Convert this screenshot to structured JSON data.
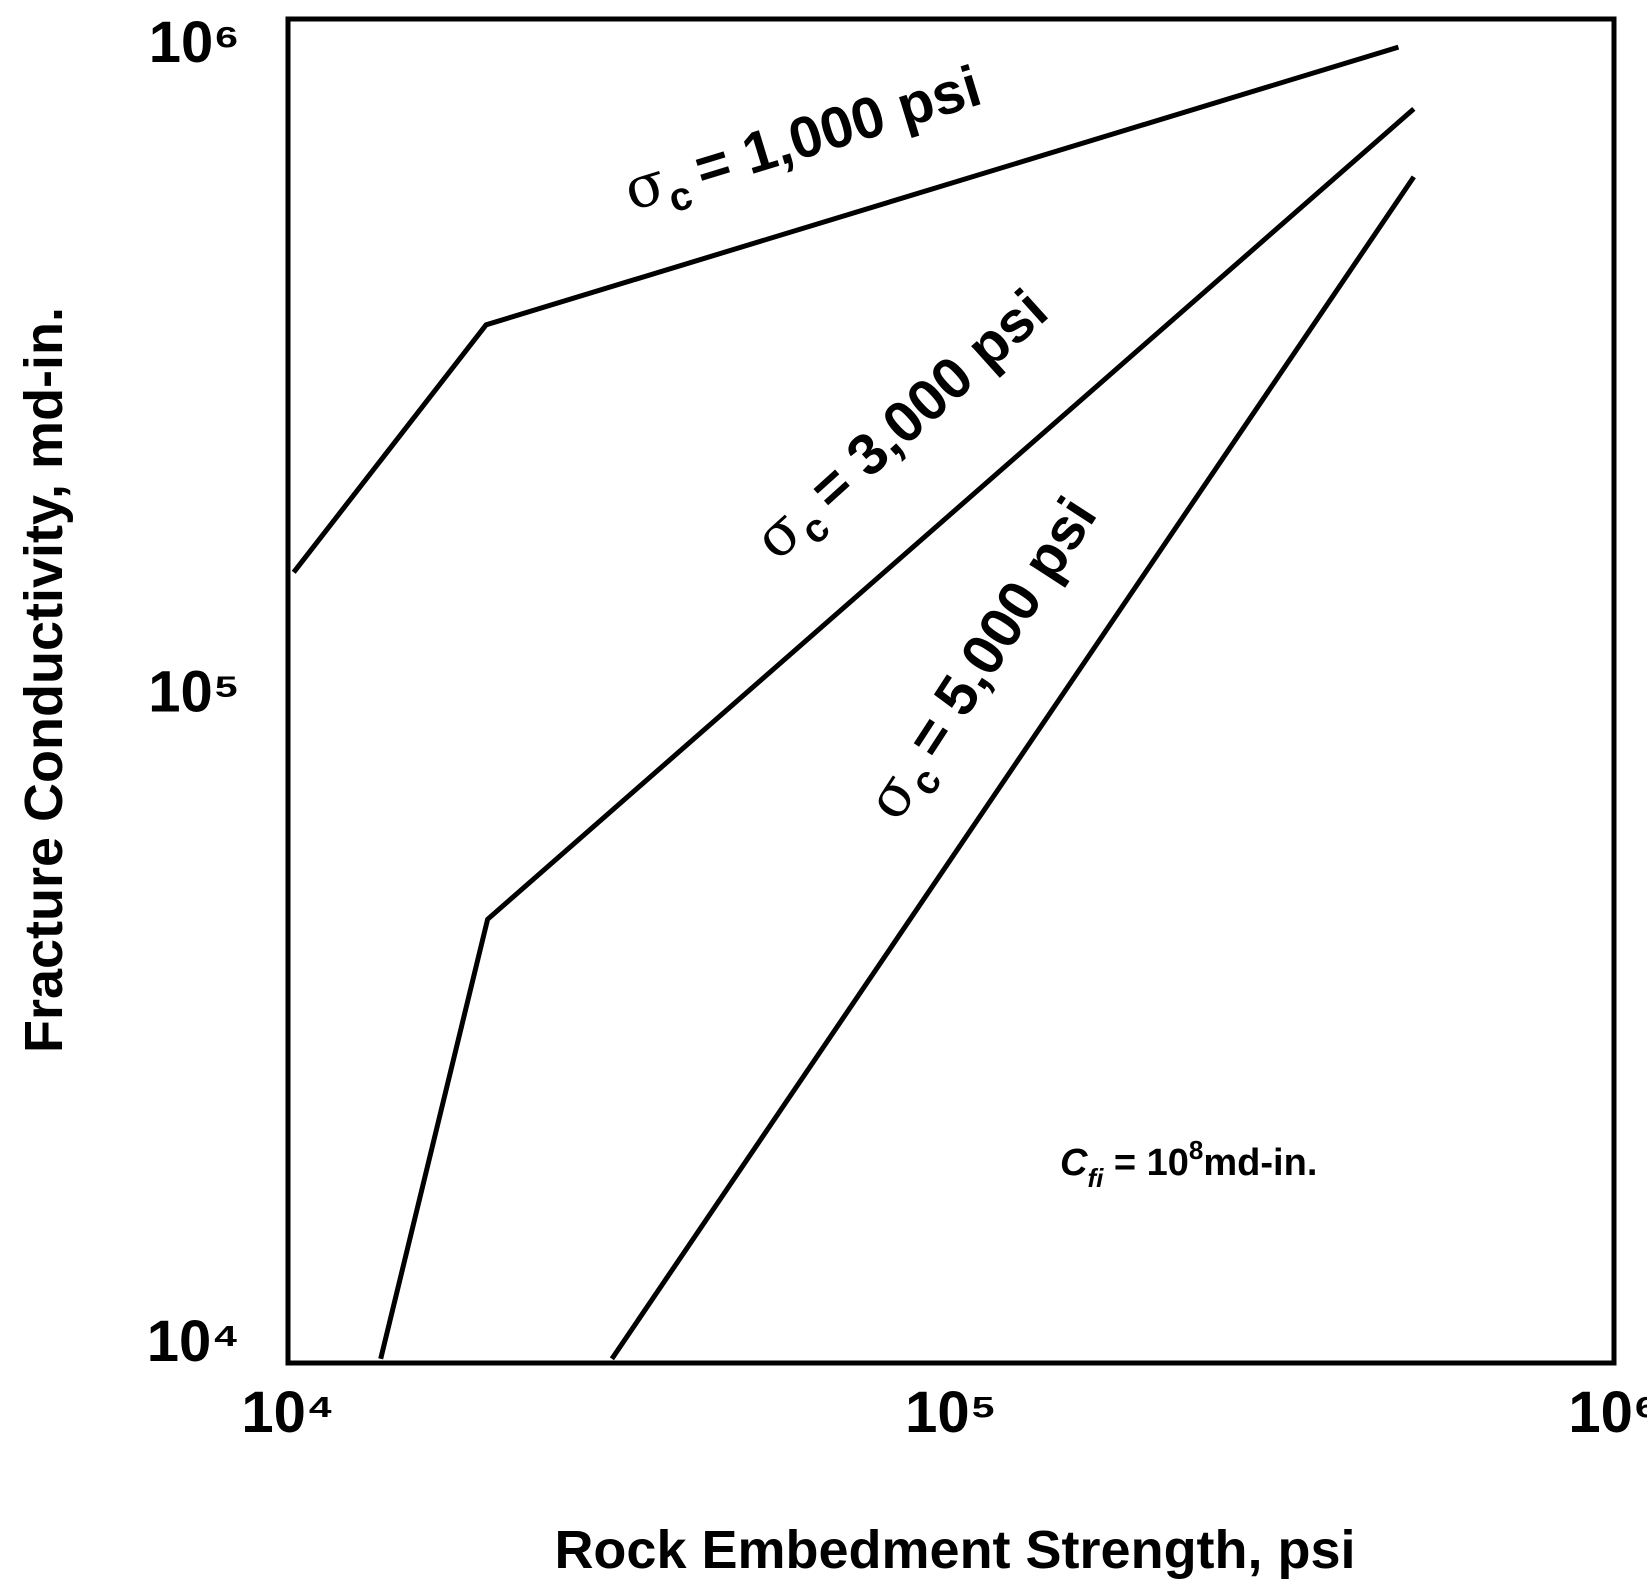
{
  "chart_data": {
    "type": "line",
    "xlabel": "Rock Embedment Strength, psi",
    "ylabel": "Fracture Conductivity, md-in.",
    "xscale": "log",
    "yscale": "log",
    "grid": false,
    "xlim": [
      10000,
      1000000
    ],
    "ylim": [
      9250,
      1085000
    ],
    "xticks": [
      {
        "value": 10000,
        "label": "10⁴"
      },
      {
        "value": 100000,
        "label": "10⁵"
      },
      {
        "value": 1000000,
        "label": "10⁶"
      }
    ],
    "yticks": [
      {
        "value": 10000,
        "label": "10⁴"
      },
      {
        "value": 100000,
        "label": "10⁵"
      },
      {
        "value": 1000000,
        "label": "10⁶"
      }
    ],
    "series": [
      {
        "name_parts": [
          "σ",
          "c",
          "= 1,000 psi"
        ],
        "color": "#000000",
        "x": [
          10200,
          19900,
          473000
        ],
        "values": [
          152600,
          367000,
          982000
        ]
      },
      {
        "name_parts": [
          "σ",
          "c",
          "= 3,000 psi"
        ],
        "color": "#000000",
        "x": [
          13800,
          20000,
          499000
        ],
        "values": [
          9390,
          44600,
          789000
        ]
      },
      {
        "name_parts": [
          "σ",
          "c",
          "= 5,000 psi"
        ],
        "color": "#000000",
        "x": [
          30800,
          499000
        ],
        "values": [
          9390,
          620000
        ]
      }
    ],
    "annotation_parts": [
      "C",
      "fi",
      " = 10",
      "8",
      "md-in."
    ]
  }
}
